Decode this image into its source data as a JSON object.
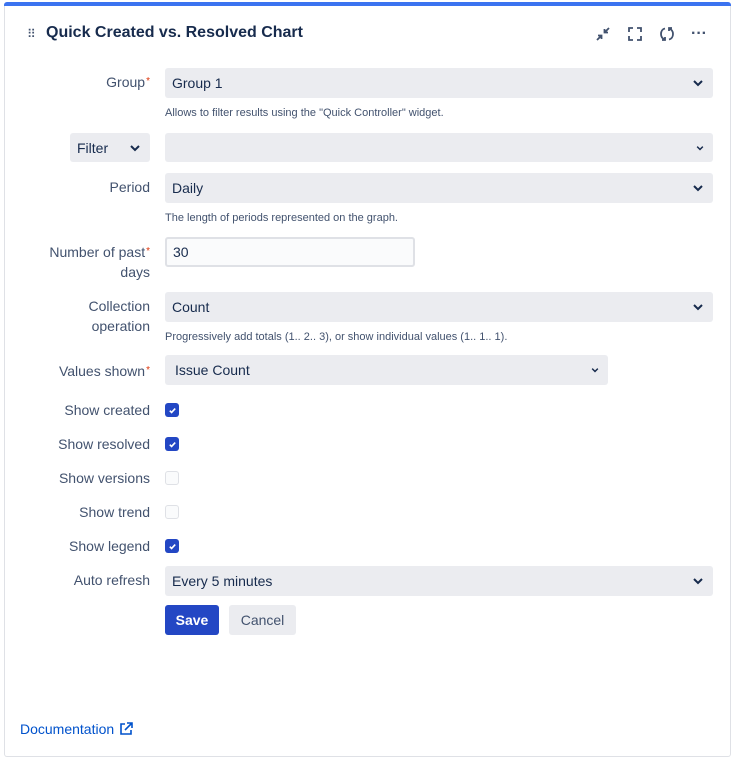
{
  "header": {
    "title": "Quick Created vs. Resolved Chart",
    "icons": [
      "drag-handle-icon",
      "minimize-icon",
      "fullscreen-icon",
      "refresh-icon",
      "more-icon"
    ]
  },
  "form": {
    "group": {
      "label": "Group",
      "value": "Group 1",
      "help": "Allows to filter results using the \"Quick Controller\" widget."
    },
    "filter": {
      "label": "Filter",
      "value": ""
    },
    "period": {
      "label": "Period",
      "value": "Daily",
      "help": "The length of periods represented on the graph."
    },
    "days": {
      "label_1": "Number of past",
      "label_2": "days",
      "value": "30"
    },
    "collection": {
      "label_1": "Collection",
      "label_2": "operation",
      "value": "Count",
      "help": "Progressively add totals (1.. 2.. 3), or show individual values (1.. 1.. 1)."
    },
    "values_shown": {
      "label": "Values shown",
      "value": "Issue Count"
    },
    "checkboxes": [
      {
        "label": "Show created",
        "checked": true
      },
      {
        "label": "Show resolved",
        "checked": true
      },
      {
        "label": "Show versions",
        "checked": false
      },
      {
        "label": "Show trend",
        "checked": false
      },
      {
        "label": "Show legend",
        "checked": true
      }
    ],
    "auto_refresh": {
      "label": "Auto refresh",
      "value": "Every 5 minutes"
    },
    "required_mark": "*",
    "save": "Save",
    "cancel": "Cancel"
  },
  "footer": {
    "documentation": "Documentation"
  },
  "colors": {
    "accent": "#3b73f0",
    "primary_button": "#2347c4",
    "required": "#de350b"
  }
}
